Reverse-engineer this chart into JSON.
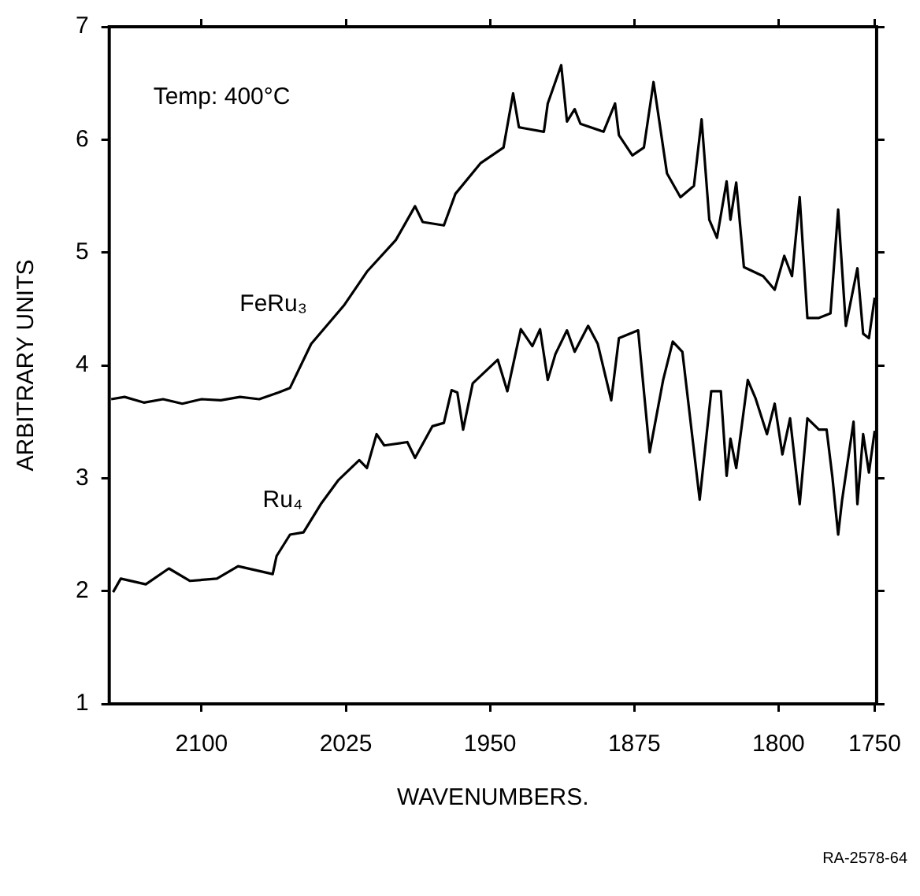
{
  "chart_data": {
    "type": "line",
    "xlabel": "WAVENUMBERS.",
    "ylabel": "ARBITRARY UNITS",
    "annotations": [
      "Temp: 400°C",
      "RA-2578-64"
    ],
    "xlim": [
      2148,
      1749
    ],
    "xticks": [
      2100,
      2025,
      1950,
      1875,
      1800,
      1750
    ],
    "ylim": [
      1,
      7
    ],
    "yticks": [
      1,
      2,
      3,
      4,
      5,
      6,
      7
    ],
    "grid": false,
    "legend": false,
    "marker": "none",
    "line_style": "solid",
    "series": [
      {
        "name": "FeRu₃",
        "color": "#000000",
        "x": [
          2147,
          2140,
          2130,
          2120,
          2110,
          2100,
          2090,
          2080,
          2070,
          2060,
          2054,
          2043,
          2026,
          2014,
          1999,
          1989,
          1985,
          1974,
          1968,
          1955,
          1943,
          1938,
          1935,
          1932,
          1922,
          1920,
          1913,
          1910,
          1906,
          1903,
          1891,
          1885,
          1883,
          1876,
          1870,
          1865,
          1858,
          1851,
          1844,
          1840,
          1836,
          1832,
          1827,
          1825,
          1822,
          1818,
          1808,
          1802,
          1797,
          1793,
          1789,
          1785,
          1779,
          1773,
          1769,
          1765,
          1759,
          1756,
          1753,
          1750
        ],
        "values": [
          3.7,
          3.72,
          3.67,
          3.7,
          3.66,
          3.7,
          3.69,
          3.72,
          3.7,
          3.76,
          3.8,
          4.19,
          4.53,
          4.83,
          5.11,
          5.41,
          5.27,
          5.24,
          5.52,
          5.79,
          5.93,
          6.41,
          6.11,
          6.1,
          6.07,
          6.32,
          6.66,
          6.16,
          6.27,
          6.14,
          6.07,
          6.32,
          6.04,
          5.86,
          5.93,
          6.51,
          5.7,
          5.49,
          5.59,
          6.18,
          5.29,
          5.13,
          5.63,
          5.29,
          5.62,
          4.87,
          4.79,
          4.67,
          4.97,
          4.79,
          5.49,
          4.42,
          4.42,
          4.46,
          5.38,
          4.35,
          4.86,
          4.28,
          4.24,
          4.6
        ]
      },
      {
        "name": "Ru₄",
        "color": "#000000",
        "x": [
          2146,
          2142,
          2129,
          2117,
          2106,
          2092,
          2081,
          2063,
          2061,
          2054,
          2047,
          2038,
          2029,
          2018,
          2014,
          2009,
          2005,
          1993,
          1989,
          1980,
          1974,
          1970,
          1967,
          1964,
          1959,
          1946,
          1941,
          1934,
          1928,
          1924,
          1920,
          1916,
          1910,
          1906,
          1899,
          1894,
          1887,
          1883,
          1873,
          1867,
          1860,
          1855,
          1850,
          1841,
          1835,
          1830,
          1827,
          1825,
          1822,
          1816,
          1812,
          1806,
          1802,
          1798,
          1794,
          1789,
          1785,
          1779,
          1775,
          1772,
          1769,
          1767,
          1761,
          1759,
          1756,
          1753,
          1750
        ],
        "values": [
          1.99,
          2.11,
          2.06,
          2.2,
          2.09,
          2.11,
          2.22,
          2.15,
          2.31,
          2.5,
          2.52,
          2.77,
          2.98,
          3.16,
          3.09,
          3.39,
          3.29,
          3.32,
          3.18,
          3.46,
          3.49,
          3.78,
          3.76,
          3.43,
          3.84,
          4.05,
          3.77,
          4.32,
          4.17,
          4.32,
          3.87,
          4.1,
          4.31,
          4.12,
          4.35,
          4.19,
          3.69,
          4.24,
          4.31,
          3.23,
          3.87,
          4.21,
          4.12,
          2.81,
          3.77,
          3.77,
          3.02,
          3.35,
          3.09,
          3.87,
          3.71,
          3.39,
          3.66,
          3.21,
          3.53,
          2.77,
          3.53,
          3.43,
          3.43,
          3.01,
          2.5,
          2.8,
          3.5,
          2.77,
          3.39,
          3.05,
          3.42
        ]
      }
    ]
  }
}
